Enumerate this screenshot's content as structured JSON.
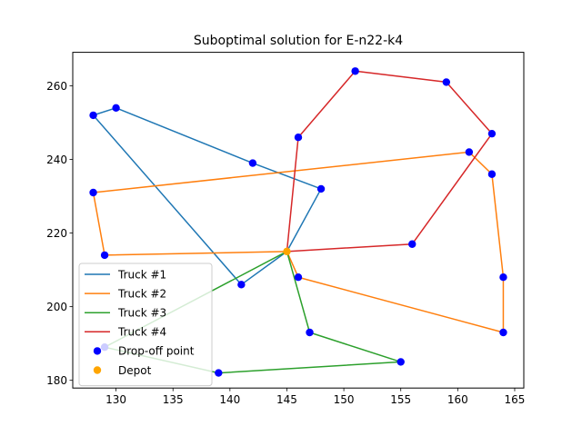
{
  "chart_data": {
    "type": "line",
    "title": "Suboptimal solution for E-n22-k4",
    "xlabel": "",
    "ylabel": "",
    "xlim": [
      126.2,
      165.8
    ],
    "ylim": [
      177.9,
      269.1
    ],
    "xticks": [
      130,
      135,
      140,
      145,
      150,
      155,
      160,
      165
    ],
    "yticks": [
      180,
      200,
      220,
      240,
      260
    ],
    "grid": false,
    "legend_position": "lower-left",
    "depot": {
      "name": "Depot",
      "x": 145,
      "y": 215,
      "color": "#ffa500"
    },
    "dropoff": {
      "name": "Drop-off point",
      "color": "#0000ff",
      "points": [
        [
          151,
          264
        ],
        [
          159,
          261
        ],
        [
          130,
          254
        ],
        [
          128,
          252
        ],
        [
          163,
          247
        ],
        [
          146,
          246
        ],
        [
          161,
          242
        ],
        [
          142,
          239
        ],
        [
          163,
          236
        ],
        [
          148,
          232
        ],
        [
          128,
          231
        ],
        [
          156,
          217
        ],
        [
          129,
          214
        ],
        [
          146,
          208
        ],
        [
          164,
          208
        ],
        [
          141,
          206
        ],
        [
          147,
          193
        ],
        [
          164,
          193
        ],
        [
          129,
          189
        ],
        [
          155,
          185
        ],
        [
          139,
          182
        ]
      ]
    },
    "series": [
      {
        "name": "Truck #1",
        "color": "#1f77b4",
        "points": [
          [
            145,
            215
          ],
          [
            148,
            232
          ],
          [
            142,
            239
          ],
          [
            130,
            254
          ],
          [
            128,
            252
          ],
          [
            141,
            206
          ],
          [
            145,
            215
          ]
        ]
      },
      {
        "name": "Truck #2",
        "color": "#ff7f0e",
        "points": [
          [
            145,
            215
          ],
          [
            129,
            214
          ],
          [
            128,
            231
          ],
          [
            161,
            242
          ],
          [
            163,
            236
          ],
          [
            164,
            208
          ],
          [
            164,
            193
          ],
          [
            146,
            208
          ],
          [
            145,
            215
          ]
        ]
      },
      {
        "name": "Truck #3",
        "color": "#2ca02c",
        "points": [
          [
            145,
            215
          ],
          [
            147,
            193
          ],
          [
            155,
            185
          ],
          [
            139,
            182
          ],
          [
            129,
            189
          ],
          [
            145,
            215
          ]
        ]
      },
      {
        "name": "Truck #4",
        "color": "#d62728",
        "points": [
          [
            145,
            215
          ],
          [
            146,
            246
          ],
          [
            151,
            264
          ],
          [
            159,
            261
          ],
          [
            163,
            247
          ],
          [
            156,
            217
          ],
          [
            145,
            215
          ]
        ]
      }
    ]
  }
}
